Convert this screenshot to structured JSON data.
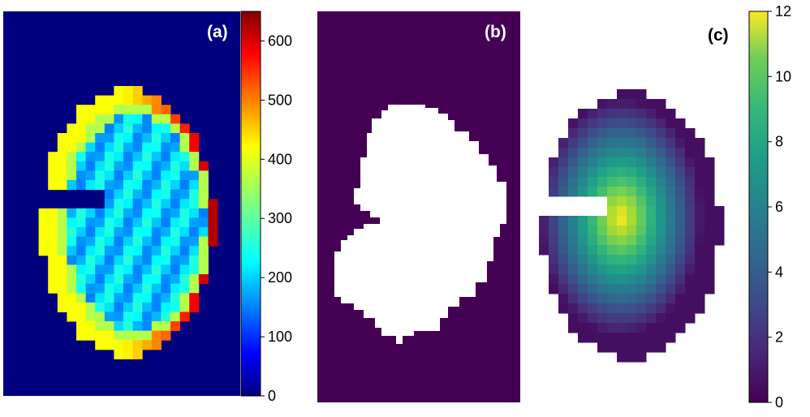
{
  "panel_labels": {
    "a": "(a)",
    "b": "(b)",
    "c": "(c)"
  },
  "colors": {
    "background": "#ffffff",
    "axis": "#000000",
    "jet_low": "#00007f",
    "viridis_low": "#440154",
    "mask_fg": "#ffffff",
    "panel_label_on_dark": "#ffffff",
    "panel_label_on_light": "#000000"
  },
  "chart_data": [
    {
      "type": "heatmap",
      "panel": "(a)",
      "colormap": "jet",
      "colorbar": {
        "range": [
          0,
          650
        ],
        "ticks": [
          0,
          100,
          200,
          300,
          400,
          500,
          600
        ],
        "tick_labels": [
          "0",
          "100",
          "200",
          "300",
          "400",
          "500",
          "600"
        ]
      },
      "description_of_values": "kidney-shaped region, interior ~180-260, bright outer rim ~450-650 on the right side, background 0"
    },
    {
      "type": "heatmap",
      "panel": "(b)",
      "colormap": "binary mask",
      "values": "kidney-shaped foreground mask (1) on background (0)"
    },
    {
      "type": "heatmap",
      "panel": "(c)",
      "colormap": "viridis",
      "colorbar": {
        "range": [
          0,
          12
        ],
        "ticks": [
          0,
          2,
          4,
          6,
          8,
          10,
          12
        ],
        "tick_labels": [
          "0",
          "2",
          "4",
          "6",
          "8",
          "10",
          "12"
        ]
      },
      "description_of_values": "distance-transform of mask, peak ~12 near center, 0 outside"
    }
  ]
}
